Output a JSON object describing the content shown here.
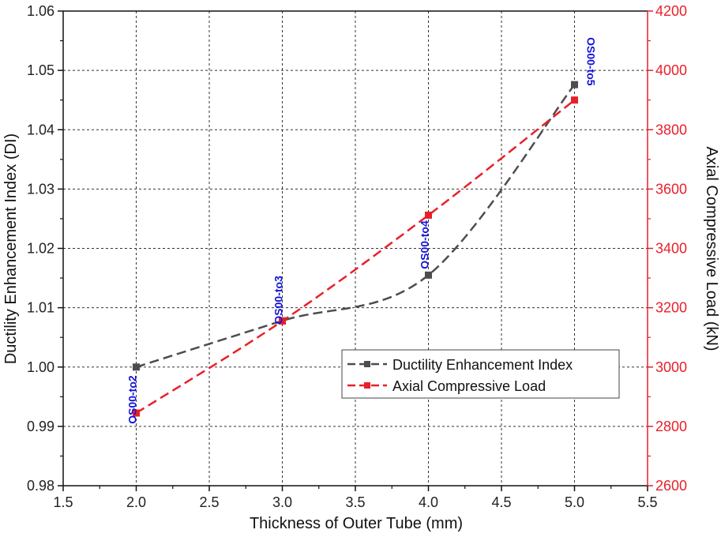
{
  "chart_data": {
    "type": "line",
    "x": [
      2.0,
      3.0,
      4.0,
      5.0
    ],
    "xlabel": "Thickness of Outer Tube (mm)",
    "xlim": [
      1.5,
      5.5
    ],
    "xticks": [
      1.5,
      2.0,
      2.5,
      3.0,
      3.5,
      4.0,
      4.5,
      5.0,
      5.5
    ],
    "xtick_labels": [
      "1.5",
      "2.0",
      "2.5",
      "3.0",
      "3.5",
      "4.0",
      "4.5",
      "5.0",
      "5.5"
    ],
    "y_left": {
      "label": "Ductility Enhancement Index (DI)",
      "lim": [
        0.98,
        1.06
      ],
      "ticks": [
        0.98,
        0.99,
        1.0,
        1.01,
        1.02,
        1.03,
        1.04,
        1.05,
        1.06
      ],
      "tick_labels": [
        "0.98",
        "0.99",
        "1.00",
        "1.01",
        "1.02",
        "1.03",
        "1.04",
        "1.05",
        "1.06"
      ]
    },
    "y_right": {
      "label": "Axial Compressive Load (kN)",
      "lim": [
        2600,
        4200
      ],
      "ticks": [
        2600,
        2800,
        3000,
        3200,
        3400,
        3600,
        3800,
        4000,
        4200
      ],
      "tick_labels": [
        "2600",
        "2800",
        "3000",
        "3200",
        "3400",
        "3600",
        "3800",
        "4000",
        "4200"
      ],
      "color": "#e8202a"
    },
    "series": [
      {
        "name": "Ductility Enhancement Index",
        "axis": "left",
        "values": [
          1.0,
          1.0078,
          1.0155,
          1.0476
        ],
        "color": "#4d4d4d",
        "line_style": "dashed",
        "marker": "square",
        "smooth": true
      },
      {
        "name": "Axial Compressive Load",
        "axis": "right",
        "values": [
          2845,
          3155,
          3512,
          3900
        ],
        "color": "#e8202a",
        "line_style": "dashed",
        "marker": "square",
        "smooth": true
      }
    ],
    "annotations": [
      {
        "text": "OS00-to2",
        "x": 2.0,
        "y_left": 0.9945,
        "color": "#1414d8",
        "rotation": -90
      },
      {
        "text": "OS00-to3",
        "x": 3.0,
        "y_left": 1.0113,
        "color": "#1414d8",
        "rotation": -90
      },
      {
        "text": "OS00-to4",
        "x": 4.0,
        "y_left": 1.0206,
        "color": "#1414d8",
        "rotation": -90
      },
      {
        "text": "OS00-to5",
        "x": 5.0,
        "y_left": 1.0515,
        "color": "#1414d8",
        "rotation": 90
      }
    ],
    "grid": true,
    "legend_position": "lower-right"
  }
}
